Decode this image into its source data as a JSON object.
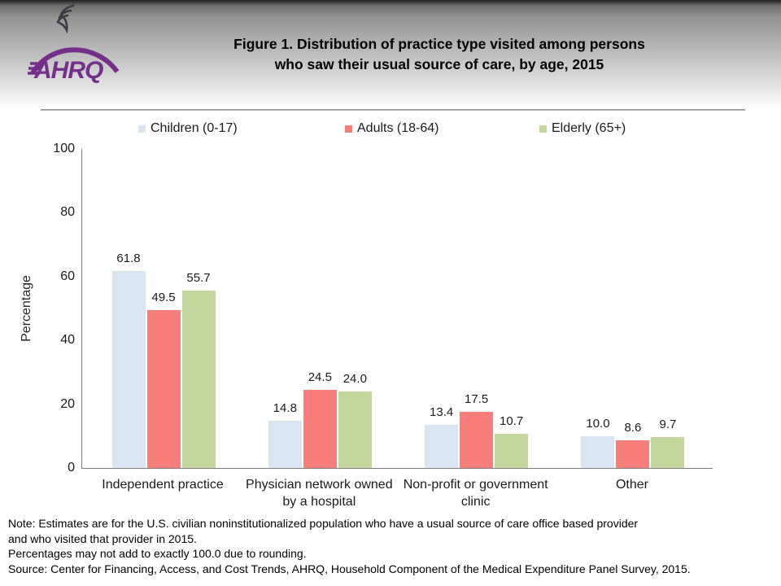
{
  "header": {
    "title_line1": "Figure 1. Distribution of practice type visited among persons",
    "title_line2": "who saw their usual source of care, by age, 2015",
    "logo_text": "AHRQ"
  },
  "colors": {
    "brand_purple": "#742F8A",
    "axis_gray": "#7f7f7f",
    "children_blue": "#D9E5F1",
    "adults_red": "#F87E7B",
    "elderly_green": "#C3D69B"
  },
  "chart_data": {
    "type": "bar",
    "title": "Figure 1. Distribution of practice type visited among persons who saw their usual source of care, by age, 2015",
    "xlabel": "",
    "ylabel": "Percentage",
    "ylim": [
      0,
      100
    ],
    "yticks": [
      0,
      20,
      40,
      60,
      80,
      100
    ],
    "grid": false,
    "legend_position": "top",
    "categories": [
      "Independent practice",
      "Physician network owned by a hospital",
      "Non-profit or government clinic",
      "Other"
    ],
    "series": [
      {
        "name": "Children (0-17)",
        "color": "#D9E5F1",
        "values": [
          61.8,
          14.8,
          13.4,
          10.0
        ]
      },
      {
        "name": "Adults (18-64)",
        "color": "#F87E7B",
        "values": [
          49.5,
          24.5,
          17.5,
          8.6
        ]
      },
      {
        "name": "Elderly (65+)",
        "color": "#C3D69B",
        "values": [
          55.7,
          24.0,
          10.7,
          9.7
        ]
      }
    ]
  },
  "notes": {
    "lines": [
      "Note: Estimates are for the U.S. civilian noninstitutionalized population who have a usual source of care office based provider",
      "and who visited that provider in 2015.",
      "Percentages may not add to exactly 100.0 due to rounding.",
      "Source: Center for Financing, Access, and Cost Trends, AHRQ, Household Component of the Medical Expenditure Panel Survey, 2015."
    ]
  }
}
